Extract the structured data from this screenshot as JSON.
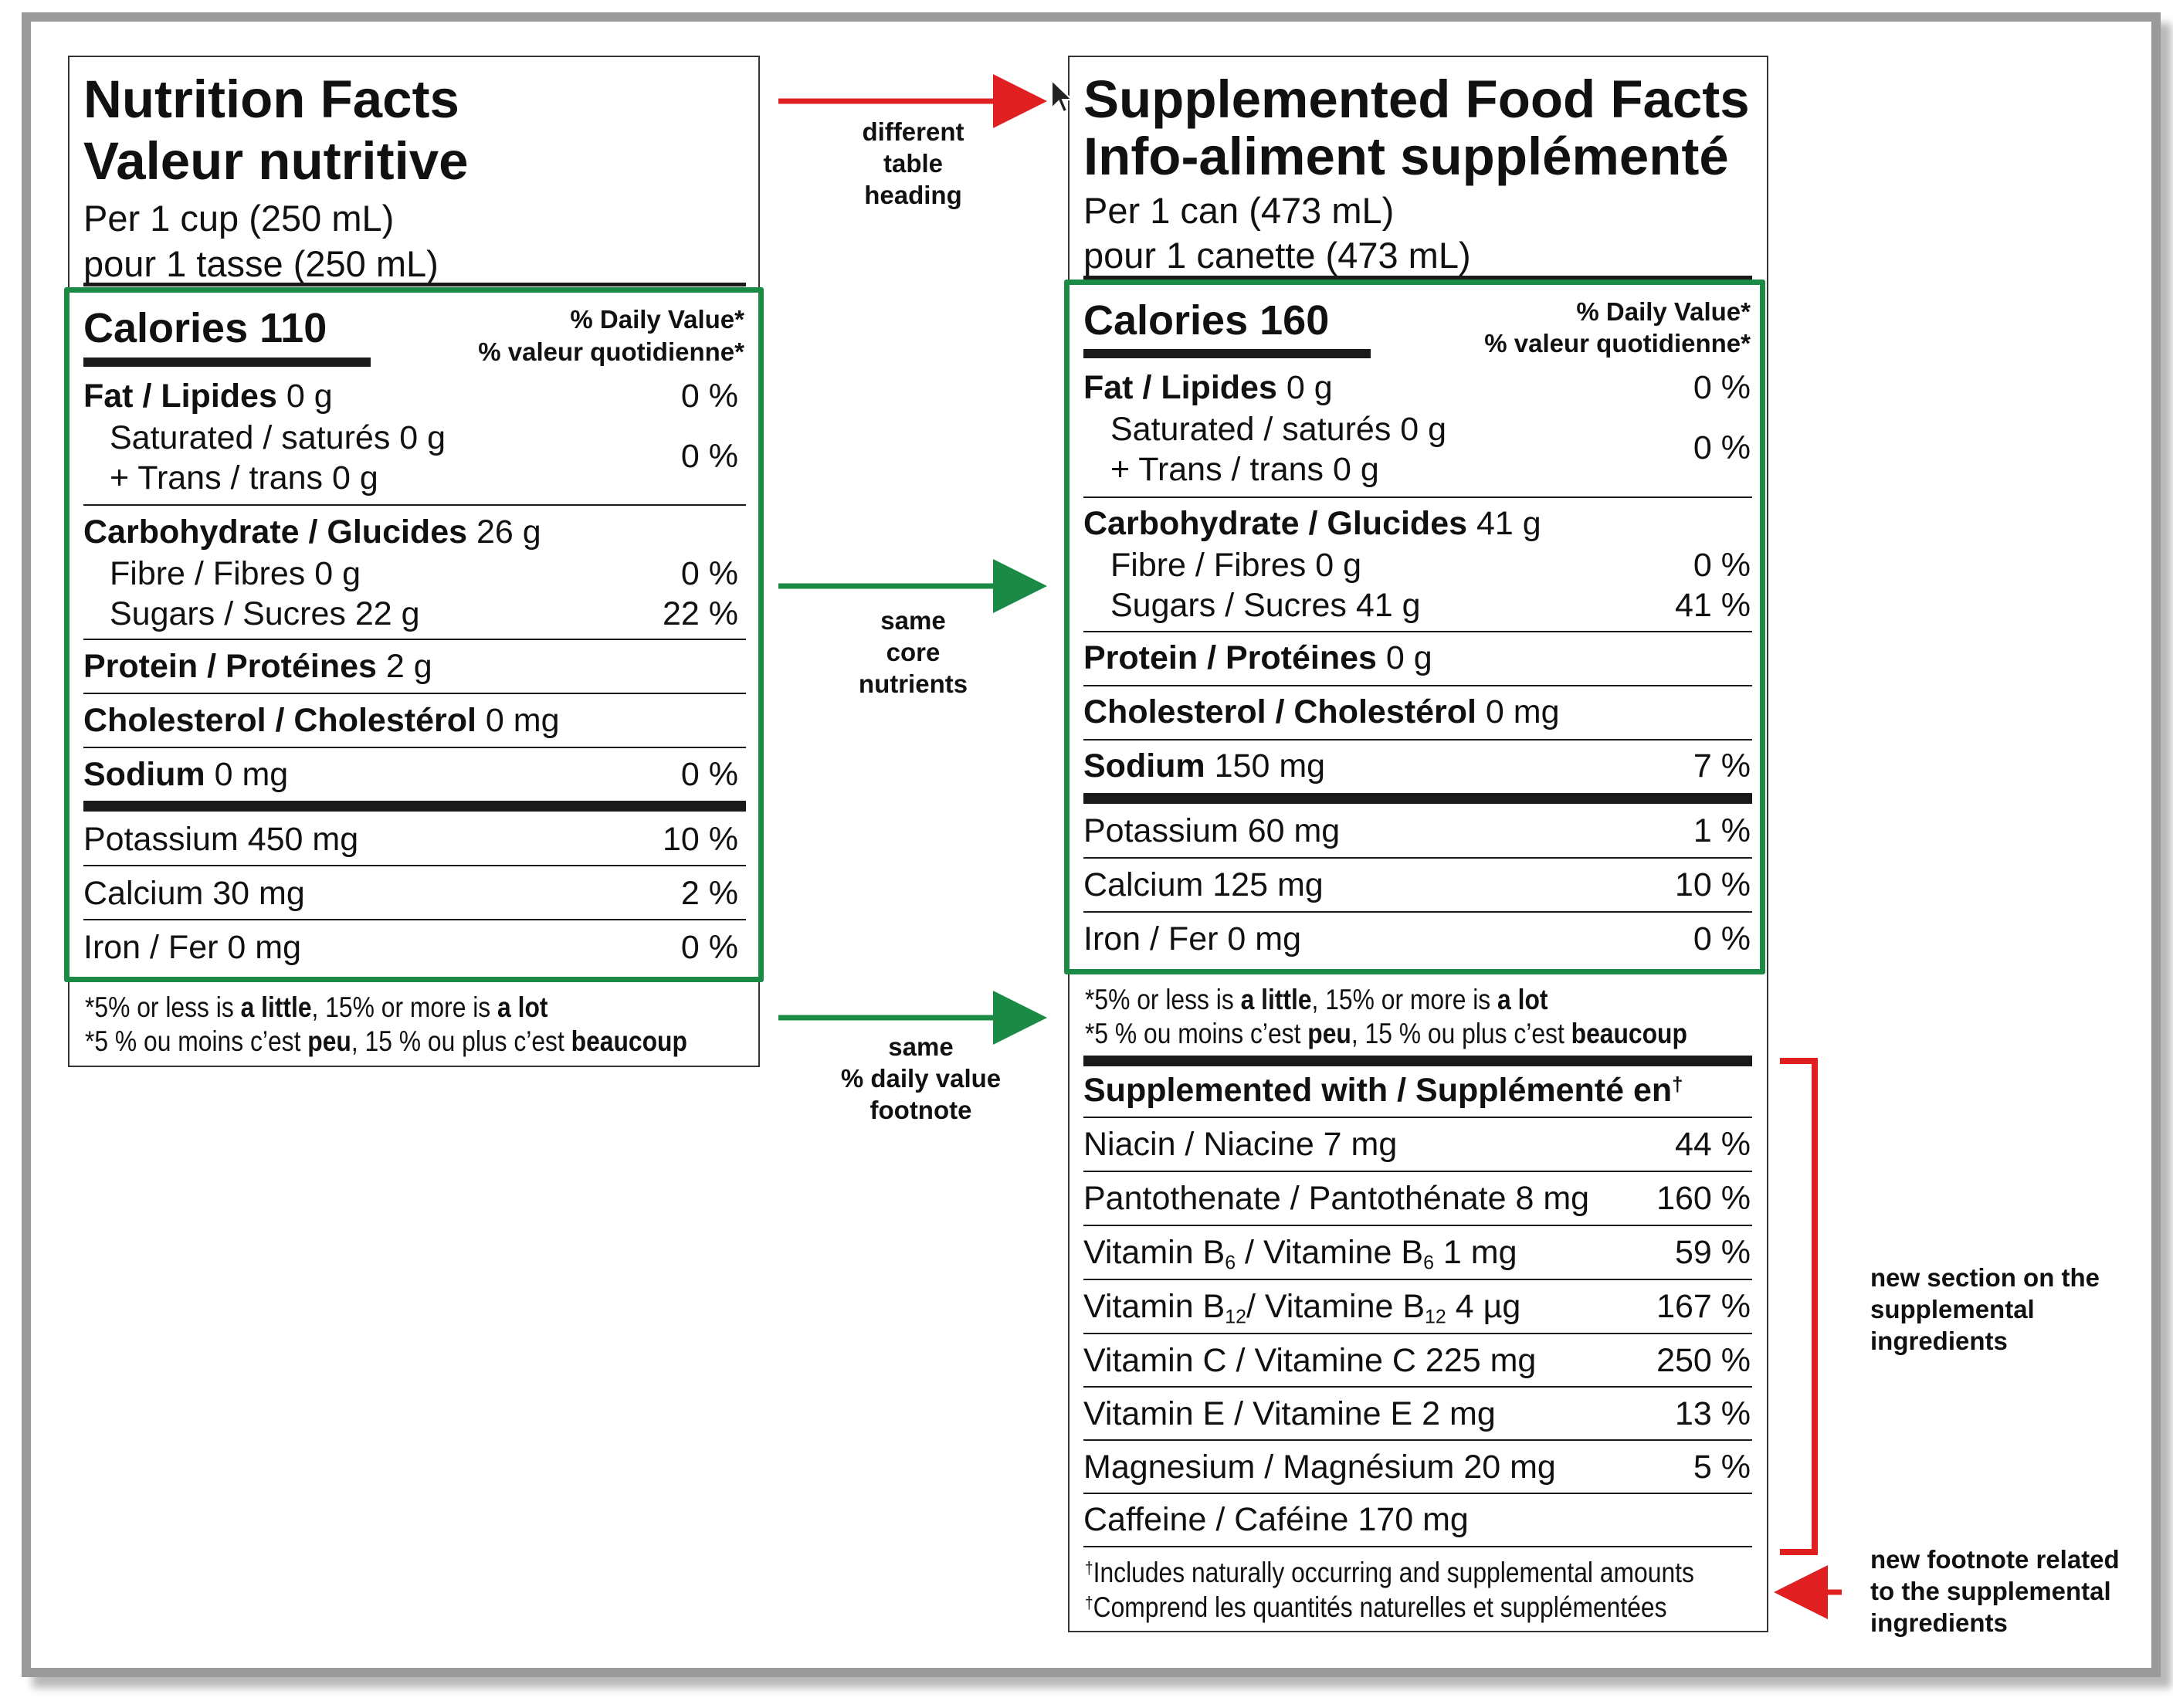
{
  "left": {
    "title_en": "Nutrition Facts",
    "title_fr": "Valeur nutritive",
    "serving_en": "Per 1 cup (250 mL)",
    "serving_fr": "pour 1 tasse (250 mL)",
    "calories_label": "Calories",
    "calories_value": "110",
    "dv_en": "% Daily Value*",
    "dv_fr": "% valeur quotidienne*",
    "fat_label": "Fat / Lipides",
    "fat_amount": "0 g",
    "fat_pct": "0 %",
    "sat_label": "Saturated / saturés 0 g",
    "trans_label": "+ Trans / trans 0 g",
    "sat_trans_pct": "0 %",
    "carb_label": "Carbohydrate / Glucides",
    "carb_amount": "26 g",
    "fibre_label": "Fibre / Fibres 0 g",
    "fibre_pct": "0 %",
    "sugars_label": "Sugars / Sucres 22 g",
    "sugars_pct": "22 %",
    "protein_label": "Protein / Protéines",
    "protein_amount": "2 g",
    "chol_label": "Cholesterol / Cholestérol",
    "chol_amount": "0 mg",
    "sodium_label": "Sodium",
    "sodium_amount": "0 mg",
    "sodium_pct": "0 %",
    "potassium_label": "Potassium 450 mg",
    "potassium_pct": "10 %",
    "calcium_label": "Calcium 30 mg",
    "calcium_pct": "2 %",
    "iron_label": "Iron / Fer 0 mg",
    "iron_pct": "0 %",
    "foot_en_a": "*5% or less is ",
    "foot_en_b": "a little",
    "foot_en_c": ", 15% or more is ",
    "foot_en_d": "a lot",
    "foot_fr_a": "*5 % ou moins c’est ",
    "foot_fr_b": "peu",
    "foot_fr_c": ", 15 % ou plus c’est ",
    "foot_fr_d": "beaucoup"
  },
  "right": {
    "title_en": "Supplemented Food Facts",
    "title_fr": "Info-aliment supplémenté",
    "serving_en": "Per 1 can (473  mL)",
    "serving_fr": "pour 1 canette (473 mL)",
    "calories_label": "Calories",
    "calories_value": "160",
    "dv_en": "% Daily Value*",
    "dv_fr": "% valeur quotidienne*",
    "fat_label": "Fat / Lipides",
    "fat_amount": "0 g",
    "fat_pct": "0 %",
    "sat_label": "Saturated / saturés 0 g",
    "trans_label": "+ Trans / trans 0 g",
    "sat_trans_pct": "0 %",
    "carb_label": "Carbohydrate / Glucides",
    "carb_amount": "41 g",
    "fibre_label": "Fibre / Fibres 0 g",
    "fibre_pct": "0 %",
    "sugars_label": "Sugars / Sucres 41 g",
    "sugars_pct": "41 %",
    "protein_label": "Protein / Protéines",
    "protein_amount": "0 g",
    "chol_label": "Cholesterol / Cholestérol",
    "chol_amount": "0 mg",
    "sodium_label": "Sodium",
    "sodium_amount": "150 mg",
    "sodium_pct": "7 %",
    "potassium_label": "Potassium 60 mg",
    "potassium_pct": "1 %",
    "calcium_label": "Calcium 125 mg",
    "calcium_pct": "10 %",
    "iron_label": "Iron / Fer 0 mg",
    "iron_pct": "0 %",
    "foot_en_a": "*5% or less is ",
    "foot_en_b": "a little",
    "foot_en_c": ", 15% or more is ",
    "foot_en_d": "a lot",
    "foot_fr_a": "*5 % ou moins c’est ",
    "foot_fr_b": "peu",
    "foot_fr_c": ", 15 % ou plus c’est ",
    "foot_fr_d": "beaucoup",
    "supp_heading": "Supplemented with / Supplémenté en",
    "supp_dagger": "†",
    "niacin_label": "Niacin / Niacine 7 mg",
    "niacin_pct": "44 %",
    "panto_label": "Pantothenate / Pantothénate 8 mg",
    "panto_pct": "160 %",
    "b6_a": "Vitamin B",
    "b6_sub": "6",
    "b6_b": " / Vitamine B",
    "b6_c": " 1 mg",
    "b6_pct": "59 %",
    "b12_a": "Vitamin B",
    "b12_sub": "12",
    "b12_b": "/ Vitamine B",
    "b12_c": " 4 µg",
    "b12_pct": "167 %",
    "vitc_label": "Vitamin C / Vitamine C 225 mg",
    "vitc_pct": "250 %",
    "vite_label": "Vitamin E / Vitamine E 2 mg",
    "vite_pct": "13 %",
    "mag_label": "Magnesium / Magnésium 20 mg",
    "mag_pct": "5 %",
    "caff_label": "Caffeine / Caféine 170 mg",
    "dag_en": "Includes naturally occurring and supplemental amounts",
    "dag_fr": "Comprend les quantités naturelles et supplémentées"
  },
  "annotations": {
    "heading_note": [
      "different",
      "table",
      "heading"
    ],
    "core_note": [
      "same",
      "core",
      "nutrients"
    ],
    "dv_note": [
      "same",
      "% daily value",
      "footnote"
    ],
    "supp_note": [
      "new section on the",
      "supplemental",
      "ingredients"
    ],
    "foot_note": [
      "new footnote related",
      "to the supplemental",
      "ingredients"
    ]
  },
  "colors": {
    "green": "#1a8a45",
    "red": "#e02020",
    "frame": "#9a9a9a"
  }
}
